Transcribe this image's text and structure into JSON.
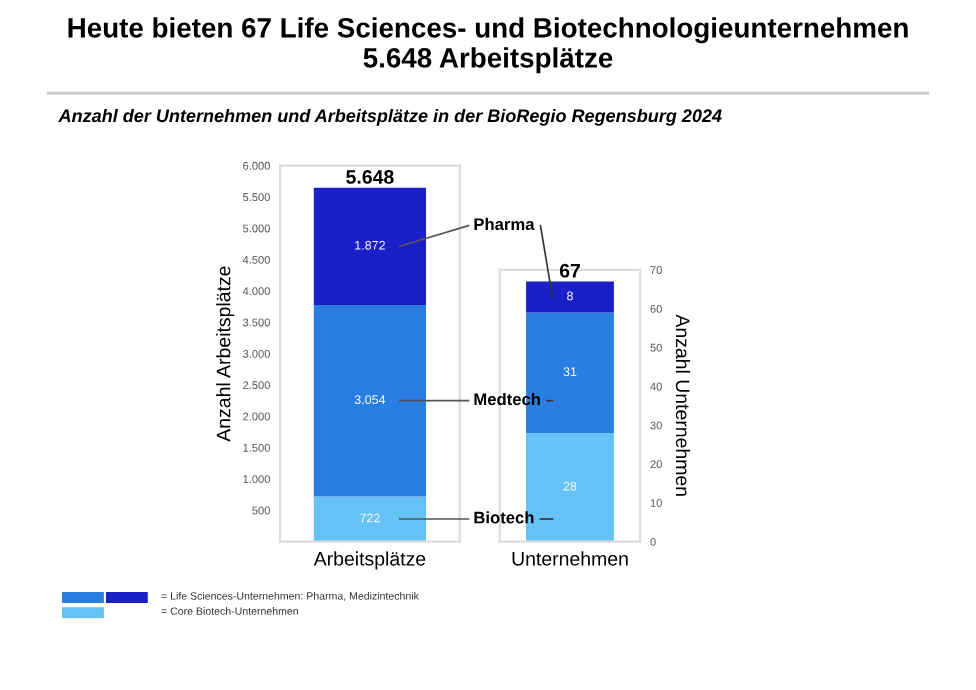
{
  "chart_data": [
    {
      "type": "bar",
      "stacked": true,
      "title": "Heute bieten 67 Life Sciences- und Biotechnologieunternehmen\n5.648 Arbeitsplätze",
      "subtitle": "Anzahl der Unternehmen und Arbeitsplätze in der BioRegio Regensburg 2024",
      "categories": [
        "Arbeitsplätze"
      ],
      "ylabel": "Anzahl Arbeitsplätze",
      "ylim": [
        0,
        6000
      ],
      "yticks": [
        {
          "value": 0,
          "label": null
        },
        {
          "value": 500,
          "label": "500"
        },
        {
          "value": 1000,
          "label": "1.000"
        },
        {
          "value": 1500,
          "label": "1.500"
        },
        {
          "value": 2000,
          "label": "2.000"
        },
        {
          "value": 2500,
          "label": "2.500"
        },
        {
          "value": 3000,
          "label": "3.000"
        },
        {
          "value": 3500,
          "label": "3.500"
        },
        {
          "value": 4000,
          "label": "4.000"
        },
        {
          "value": 4500,
          "label": "4.500"
        },
        {
          "value": 5000,
          "label": "5.000"
        },
        {
          "value": 5500,
          "label": "5.500"
        },
        {
          "value": 6000,
          "label": "6.000"
        }
      ],
      "series": [
        {
          "name": "Biotech",
          "color": "#66c2f5",
          "values": [
            722
          ],
          "value_labels": [
            "722"
          ]
        },
        {
          "name": "Medtech",
          "color": "#2a7de1",
          "values": [
            3054
          ],
          "value_labels": [
            "3.054"
          ]
        },
        {
          "name": "Pharma",
          "color": "#1a1fc8",
          "values": [
            1872
          ],
          "value_labels": [
            "1.872"
          ]
        }
      ],
      "totals": [
        "5.648"
      ],
      "annotations": [
        "= Life Sciences-Unternehmen: Pharma, Medizintechnik",
        "= Core Biotech-Unternehmen"
      ]
    },
    {
      "type": "bar",
      "stacked": true,
      "categories": [
        "Unternehmen"
      ],
      "y2label": "Anzahl Unternehmen",
      "y2lim": [
        0,
        70
      ],
      "y2ticks": [
        0,
        10,
        20,
        30,
        40,
        50,
        60,
        70
      ],
      "series": [
        {
          "color": "#66c2f5",
          "values": [
            28
          ],
          "axis": "y2"
        },
        {
          "color": "#2a7de1",
          "values": [
            31
          ],
          "axis": "y2"
        },
        {
          "color": "#1a1fc8",
          "values": [
            8
          ],
          "axis": "y2"
        }
      ],
      "data_labels": true,
      "totals": [
        "67"
      ]
    }
  ]
}
